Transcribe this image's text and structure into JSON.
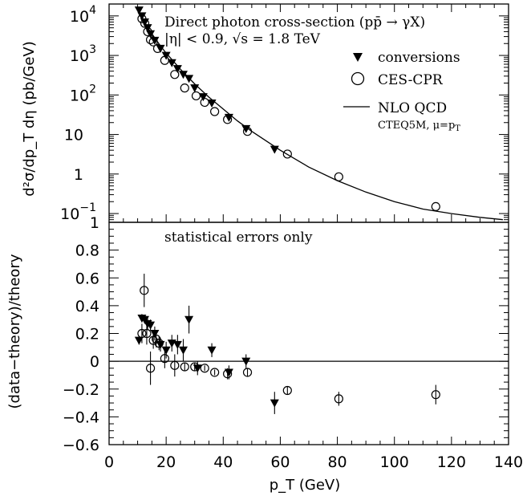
{
  "chart_data": [
    {
      "type": "scatter",
      "panel": "top",
      "ylabel": "d²σ/dp_T dη (pb/GeV)",
      "yscale": "log",
      "ylim": [
        0.06,
        20000
      ],
      "xlim": [
        0,
        140
      ],
      "yticks": [
        {
          "value": 10000,
          "base": "10",
          "exp": "4"
        },
        {
          "value": 1000,
          "base": "10",
          "exp": "3"
        },
        {
          "value": 100,
          "base": "10",
          "exp": "2"
        },
        {
          "value": 10,
          "base": "10",
          "exp": ""
        },
        {
          "value": 1,
          "base": "1",
          "exp": ""
        },
        {
          "value": 0.1,
          "base": "10",
          "exp": "−1"
        }
      ],
      "annotations": {
        "title_line1": "Direct photon cross-section (pp̄ → γX)",
        "title_line2": "|η| < 0.9, √s = 1.8 TeV",
        "legend_conv": "conversions",
        "legend_ces": "CES-CPR",
        "legend_nlo": "NLO QCD",
        "legend_nlo_sub": "CTEQ5M, μ=p",
        "legend_nlo_sub_idx": "T"
      },
      "series": [
        {
          "name": "conversions",
          "marker": "filled-triangle-down",
          "points": [
            [
              10.5,
              14000
            ],
            [
              11.5,
              10000
            ],
            [
              12.5,
              7000
            ],
            [
              13.5,
              5000
            ],
            [
              14.5,
              3500
            ],
            [
              16,
              2400
            ],
            [
              18,
              1500
            ],
            [
              20,
              1000
            ],
            [
              22,
              650
            ],
            [
              24,
              460
            ],
            [
              26,
              330
            ],
            [
              28,
              260
            ],
            [
              30,
              150
            ],
            [
              33,
              90
            ],
            [
              36,
              62
            ],
            [
              42,
              27
            ],
            [
              48,
              14
            ],
            [
              58,
              4.2
            ]
          ]
        },
        {
          "name": "CES-CPR",
          "marker": "open-circle",
          "points": [
            [
              11.5,
              8500
            ],
            [
              12.5,
              6500
            ],
            [
              13.5,
              4000
            ],
            [
              14.5,
              2500
            ],
            [
              15.5,
              2200
            ],
            [
              17,
              1500
            ],
            [
              19.5,
              750
            ],
            [
              23,
              330
            ],
            [
              26.5,
              150
            ],
            [
              30.5,
              95
            ],
            [
              33.5,
              65
            ],
            [
              37,
              38
            ],
            [
              41.5,
              24
            ],
            [
              48.5,
              12
            ],
            [
              62.5,
              3.2
            ],
            [
              80.5,
              0.85
            ],
            [
              114.5,
              0.15
            ]
          ]
        },
        {
          "name": "NLO QCD",
          "marker": "line",
          "points": [
            [
              10,
              16000
            ],
            [
              11,
              11000
            ],
            [
              12,
              8000
            ],
            [
              13,
              6000
            ],
            [
              14,
              4500
            ],
            [
              16,
              2800
            ],
            [
              18,
              1750
            ],
            [
              20,
              1150
            ],
            [
              25,
              450
            ],
            [
              30,
              190
            ],
            [
              35,
              88
            ],
            [
              40,
              44
            ],
            [
              45,
              22
            ],
            [
              50,
              12
            ],
            [
              60,
              4
            ],
            [
              70,
              1.5
            ],
            [
              80,
              0.68
            ],
            [
              90,
              0.35
            ],
            [
              100,
              0.2
            ],
            [
              110,
              0.13
            ],
            [
              120,
              0.1
            ],
            [
              130,
              0.08
            ],
            [
              138,
              0.07
            ]
          ]
        }
      ]
    },
    {
      "type": "scatter",
      "panel": "bottom",
      "xlabel": "p_T (GeV)",
      "ylabel": "(data−theory)/theory",
      "ylim": [
        -0.6,
        1
      ],
      "xlim": [
        0,
        140
      ],
      "annotation": "statistical errors only",
      "xticks": [
        "0",
        "20",
        "40",
        "60",
        "80",
        "100",
        "120",
        "140"
      ],
      "yticks": [
        "−0.6",
        "−0.4",
        "−0.2",
        "0",
        "0.2",
        "0.4",
        "0.6",
        "0.8",
        "1"
      ],
      "series": [
        {
          "name": "conversions",
          "marker": "filled-triangle-down",
          "points": [
            {
              "x": 10.5,
              "y": 0.15,
              "err": 0.03
            },
            {
              "x": 11.5,
              "y": 0.31,
              "err": 0.03
            },
            {
              "x": 12.5,
              "y": 0.3,
              "err": 0.03
            },
            {
              "x": 13.5,
              "y": 0.27,
              "err": 0.04
            },
            {
              "x": 14.5,
              "y": 0.26,
              "err": 0.04
            },
            {
              "x": 16,
              "y": 0.2,
              "err": 0.05
            },
            {
              "x": 18,
              "y": 0.12,
              "err": 0.05
            },
            {
              "x": 20,
              "y": 0.08,
              "err": 0.06
            },
            {
              "x": 22,
              "y": 0.13,
              "err": 0.06
            },
            {
              "x": 24,
              "y": 0.12,
              "err": 0.07
            },
            {
              "x": 26,
              "y": 0.08,
              "err": 0.08
            },
            {
              "x": 28,
              "y": 0.3,
              "err": 0.1
            },
            {
              "x": 31,
              "y": -0.05,
              "err": 0.05
            },
            {
              "x": 36,
              "y": 0.08,
              "err": 0.05
            },
            {
              "x": 42,
              "y": -0.08,
              "err": 0.05
            },
            {
              "x": 48,
              "y": 0.0,
              "err": 0.05
            },
            {
              "x": 58,
              "y": -0.3,
              "err": 0.08
            }
          ]
        },
        {
          "name": "CES-CPR",
          "marker": "open-circle",
          "points": [
            {
              "x": 11.5,
              "y": 0.2,
              "err": 0.07
            },
            {
              "x": 12.3,
              "y": 0.51,
              "err": 0.12
            },
            {
              "x": 13.2,
              "y": 0.2,
              "err": 0.08
            },
            {
              "x": 14.5,
              "y": -0.05,
              "err": 0.12
            },
            {
              "x": 15.5,
              "y": 0.15,
              "err": 0.06
            },
            {
              "x": 16.5,
              "y": 0.16,
              "err": 0.06
            },
            {
              "x": 17.5,
              "y": 0.13,
              "err": 0.05
            },
            {
              "x": 19.5,
              "y": 0.02,
              "err": 0.07
            },
            {
              "x": 23,
              "y": -0.03,
              "err": 0.08
            },
            {
              "x": 26.5,
              "y": -0.04,
              "err": 0.03
            },
            {
              "x": 30,
              "y": -0.04,
              "err": 0.03
            },
            {
              "x": 33.5,
              "y": -0.05,
              "err": 0.02
            },
            {
              "x": 37,
              "y": -0.08,
              "err": 0.02
            },
            {
              "x": 41.5,
              "y": -0.09,
              "err": 0.04
            },
            {
              "x": 48.5,
              "y": -0.08,
              "err": 0.03
            },
            {
              "x": 62.5,
              "y": -0.21,
              "err": 0.03
            },
            {
              "x": 80.5,
              "y": -0.27,
              "err": 0.05
            },
            {
              "x": 114.5,
              "y": -0.24,
              "err": 0.07
            }
          ]
        }
      ]
    }
  ]
}
